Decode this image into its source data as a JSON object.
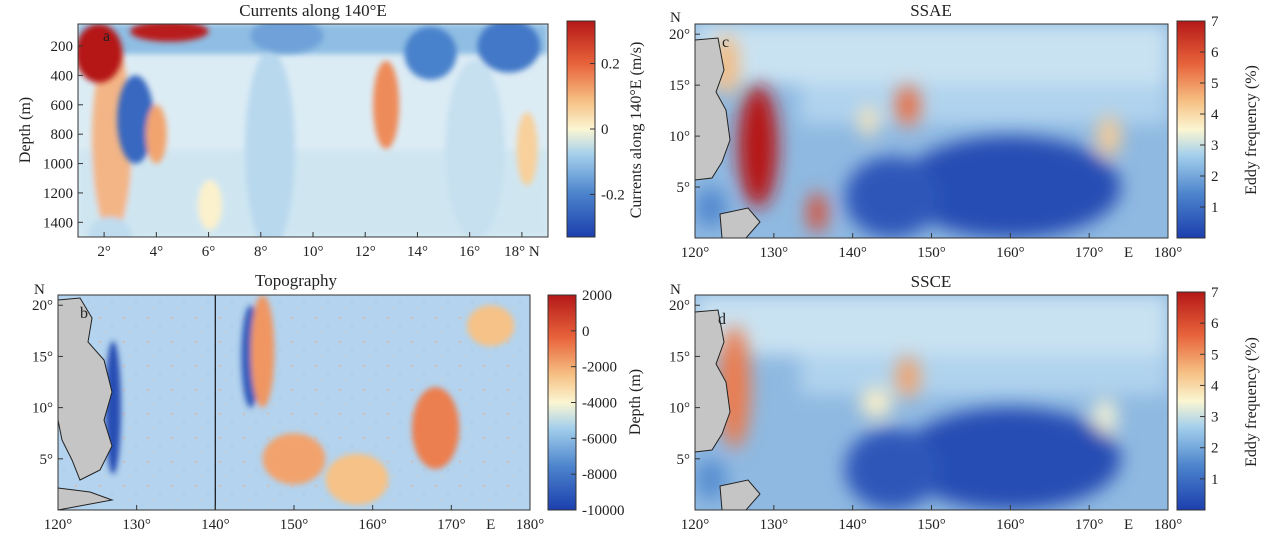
{
  "chart_data": [
    {
      "panel": "a",
      "type": "heatmap",
      "title": "Currents along 140°E",
      "ylabel": "Depth (m)",
      "x_ticks": [
        "2°",
        "4°",
        "6°",
        "8°",
        "10°",
        "12°",
        "14°",
        "16°",
        "18° N"
      ],
      "y_ticks": [
        "200",
        "400",
        "600",
        "800",
        "1000",
        "1200",
        "1400"
      ],
      "xlim": [
        1,
        19
      ],
      "ylim": [
        1500,
        50
      ],
      "colorbar": {
        "label": "Currents along 140°E (m/s)",
        "ticks": [
          "0.2",
          "0",
          "-0.2"
        ],
        "tick_values": [
          0.2,
          0,
          -0.2
        ],
        "range": [
          -0.33,
          0.33
        ]
      },
      "features": [
        {
          "lat": 1.8,
          "depth": 250,
          "value": 0.33,
          "rx": 0.9,
          "ry": 200
        },
        {
          "lat": 4.5,
          "depth": 100,
          "value": 0.32,
          "rx": 1.5,
          "ry": 70
        },
        {
          "lat": 3.2,
          "depth": 700,
          "value": -0.25,
          "rx": 0.7,
          "ry": 300
        },
        {
          "lat": 4.0,
          "depth": 800,
          "value": 0.12,
          "rx": 0.4,
          "ry": 200
        },
        {
          "lat": 12.8,
          "depth": 600,
          "value": 0.15,
          "rx": 0.5,
          "ry": 300
        },
        {
          "lat": 9.0,
          "depth": 130,
          "value": -0.15,
          "rx": 1.4,
          "ry": 120
        },
        {
          "lat": 14.5,
          "depth": 250,
          "value": -0.2,
          "rx": 1.0,
          "ry": 180
        },
        {
          "lat": 17.5,
          "depth": 200,
          "value": -0.22,
          "rx": 1.2,
          "ry": 180
        },
        {
          "lat": 18.2,
          "depth": 900,
          "value": 0.06,
          "rx": 0.4,
          "ry": 250
        }
      ]
    },
    {
      "panel": "b",
      "type": "heatmap",
      "title": "Topography",
      "x_ticks": [
        "120°",
        "130°",
        "140°",
        "150°",
        "160°",
        "170°",
        "E",
        "180°"
      ],
      "y_ticks": [
        "20°",
        "15°",
        "10°",
        "5°"
      ],
      "y_axis_letter": "N",
      "xlim": [
        120,
        180
      ],
      "ylim": [
        0,
        21
      ],
      "reference_longitude": 140,
      "colorbar": {
        "label": "Depth (m)",
        "ticks": [
          "2000",
          "0",
          "-2000",
          "-4000",
          "-6000",
          "-8000",
          "-10000"
        ],
        "tick_values": [
          2000,
          0,
          -2000,
          -4000,
          -6000,
          -8000,
          -10000
        ],
        "range": [
          -10000,
          2000
        ]
      },
      "features": [
        {
          "lon": 127,
          "lat": 10,
          "value": -9500,
          "rx": 1.0,
          "ry": 6.5
        },
        {
          "lon": 144.5,
          "lat": 15,
          "value": -9000,
          "rx": 1.2,
          "ry": 5
        },
        {
          "lon": 146,
          "lat": 15.5,
          "value": -1500,
          "rx": 1.5,
          "ry": 5.5
        },
        {
          "lon": 168,
          "lat": 8,
          "value": -1000,
          "rx": 3,
          "ry": 4
        },
        {
          "lon": 150,
          "lat": 5,
          "value": -1800,
          "rx": 4,
          "ry": 2.5
        },
        {
          "lon": 158,
          "lat": 3,
          "value": -2500,
          "rx": 4,
          "ry": 2.5
        },
        {
          "lon": 175,
          "lat": 18,
          "value": -2500,
          "rx": 3,
          "ry": 2
        }
      ]
    },
    {
      "panel": "c",
      "type": "heatmap",
      "title": "SSAE",
      "x_ticks": [
        "120°",
        "130°",
        "140°",
        "150°",
        "160°",
        "170°",
        "E",
        "180°"
      ],
      "y_ticks": [
        "20°",
        "15°",
        "10°",
        "5°"
      ],
      "y_axis_letter": "N",
      "xlim": [
        120,
        180
      ],
      "ylim": [
        0,
        21
      ],
      "colorbar": {
        "label": "Eddy frequency (%)",
        "ticks": [
          "7",
          "6",
          "5",
          "4",
          "3",
          "2",
          "1"
        ],
        "tick_values": [
          7,
          6,
          5,
          4,
          3,
          2,
          1
        ],
        "range": [
          0,
          7
        ]
      },
      "features": [
        {
          "lon": 128,
          "lat": 9,
          "value": 7,
          "rx": 2.5,
          "ry": 6
        },
        {
          "lon": 135.5,
          "lat": 2.5,
          "value": 6,
          "rx": 1.2,
          "ry": 2
        },
        {
          "lon": 147,
          "lat": 13,
          "value": 5.5,
          "rx": 1.5,
          "ry": 2
        },
        {
          "lon": 172.5,
          "lat": 10,
          "value": 4.2,
          "rx": 1.5,
          "ry": 2
        },
        {
          "lon": 142,
          "lat": 11.5,
          "value": 3.8,
          "rx": 1.2,
          "ry": 1.5
        },
        {
          "lon": 124,
          "lat": 17,
          "value": 4.5,
          "rx": 1.5,
          "ry": 3
        },
        {
          "lon": 160,
          "lat": 5,
          "value": 0.3,
          "rx": 14,
          "ry": 5
        },
        {
          "lon": 145,
          "lat": 4,
          "value": 0.5,
          "rx": 6,
          "ry": 4
        },
        {
          "lon": 122,
          "lat": 3,
          "value": 1.5,
          "rx": 2,
          "ry": 2
        }
      ]
    },
    {
      "panel": "d",
      "type": "heatmap",
      "title": "SSCE",
      "x_ticks": [
        "120°",
        "130°",
        "140°",
        "150°",
        "160°",
        "170°",
        "E",
        "180°"
      ],
      "y_ticks": [
        "20°",
        "15°",
        "10°",
        "5°"
      ],
      "y_axis_letter": "N",
      "xlim": [
        120,
        180
      ],
      "ylim": [
        0,
        21
      ],
      "colorbar": {
        "label": "Eddy frequency (%)",
        "ticks": [
          "7",
          "6",
          "5",
          "4",
          "3",
          "2",
          "1"
        ],
        "tick_values": [
          7,
          6,
          5,
          4,
          3,
          2,
          1
        ],
        "range": [
          0,
          7
        ]
      },
      "features": [
        {
          "lon": 125,
          "lat": 12,
          "value": 5.3,
          "rx": 2,
          "ry": 6
        },
        {
          "lon": 147,
          "lat": 13,
          "value": 4.8,
          "rx": 1.5,
          "ry": 2
        },
        {
          "lon": 143,
          "lat": 10.5,
          "value": 3.6,
          "rx": 2,
          "ry": 1.5
        },
        {
          "lon": 172,
          "lat": 9,
          "value": 3.4,
          "rx": 1.5,
          "ry": 2
        },
        {
          "lon": 160,
          "lat": 5,
          "value": 0.3,
          "rx": 14,
          "ry": 5
        },
        {
          "lon": 145,
          "lat": 4,
          "value": 0.5,
          "rx": 6,
          "ry": 4
        },
        {
          "lon": 122,
          "lat": 3,
          "value": 1.6,
          "rx": 2,
          "ry": 2
        }
      ]
    }
  ],
  "panel_letters": [
    "a",
    "b",
    "c",
    "d"
  ]
}
